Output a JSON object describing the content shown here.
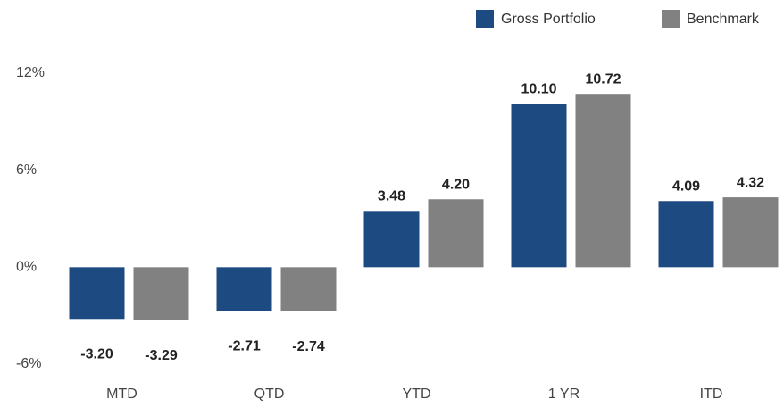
{
  "chart_data": {
    "type": "bar",
    "categories": [
      "MTD",
      "QTD",
      "YTD",
      "1 YR",
      "ITD"
    ],
    "series": [
      {
        "name": "Gross Portfolio",
        "color": "#1d4a80",
        "values": [
          -3.2,
          -2.71,
          3.48,
          10.1,
          4.09
        ],
        "value_labels": [
          "-3.20",
          "-2.71",
          "3.48",
          "10.10",
          "4.09"
        ]
      },
      {
        "name": "Benchmark",
        "color": "#818181",
        "values": [
          -3.29,
          -2.74,
          4.2,
          10.72,
          4.32
        ],
        "value_labels": [
          "-3.29",
          "-2.74",
          "4.20",
          "10.72",
          "4.32"
        ]
      }
    ],
    "ylim": [
      -6,
      12
    ],
    "yticks": [
      {
        "value": -6,
        "label": "-6%"
      },
      {
        "value": 0,
        "label": "0%"
      },
      {
        "value": 6,
        "label": "6%"
      },
      {
        "value": 12,
        "label": "12%"
      }
    ],
    "grid": false,
    "legend": "top-right"
  }
}
